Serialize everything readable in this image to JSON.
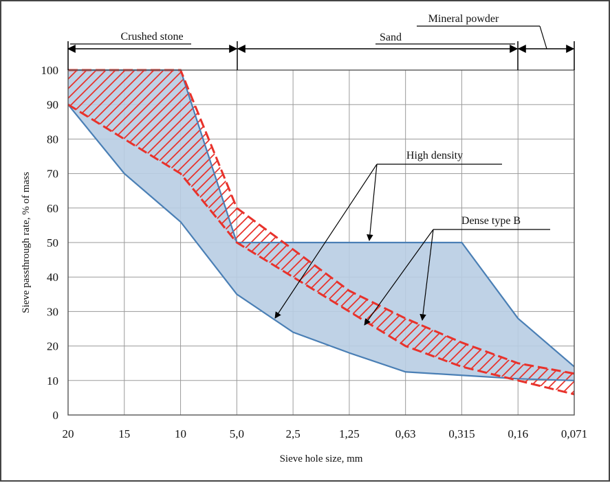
{
  "chart_data": {
    "type": "area",
    "title": "",
    "xlabel": "Sieve hole size, mm",
    "ylabel": "Sieve passthrough rate, % of mass",
    "categories": [
      "20",
      "15",
      "10",
      "5,0",
      "2,5",
      "1,25",
      "0,63",
      "0,315",
      "0,16",
      "0,071"
    ],
    "yticks": [
      "0",
      "10",
      "20",
      "30",
      "40",
      "50",
      "60",
      "70",
      "80",
      "90",
      "100"
    ],
    "ylim": [
      0,
      100
    ],
    "grid": true,
    "series": [
      {
        "name": "High density",
        "role": "upper",
        "values": [
          100,
          100,
          100,
          50,
          50,
          50,
          50,
          50,
          28,
          14
        ]
      },
      {
        "name": "High density",
        "role": "lower",
        "values": [
          90,
          70,
          56,
          35,
          24,
          18,
          12.5,
          11.5,
          10.5,
          10
        ]
      },
      {
        "name": "Dense type B",
        "role": "upper",
        "values": [
          100,
          100,
          100,
          60,
          48,
          36,
          28,
          21,
          15,
          12
        ]
      },
      {
        "name": "Dense type B",
        "role": "lower",
        "values": [
          90,
          80,
          70,
          50,
          40,
          30,
          20,
          14,
          10,
          6
        ]
      }
    ],
    "fractions": [
      {
        "label": "Crushed stone",
        "from": "20",
        "to": "5,0"
      },
      {
        "label": "Sand",
        "from": "5,0",
        "to": "0,16"
      },
      {
        "label": "Mineral powder",
        "from": "0,16",
        "to": "0,071"
      }
    ],
    "annotations": [
      "High density",
      "Dense type B"
    ],
    "colors": {
      "high_density_fill": "#b8cde3",
      "high_density_line": "#4a7fb5",
      "dense_b_line": "#e8322b",
      "grid": "#9a9a9a"
    }
  }
}
